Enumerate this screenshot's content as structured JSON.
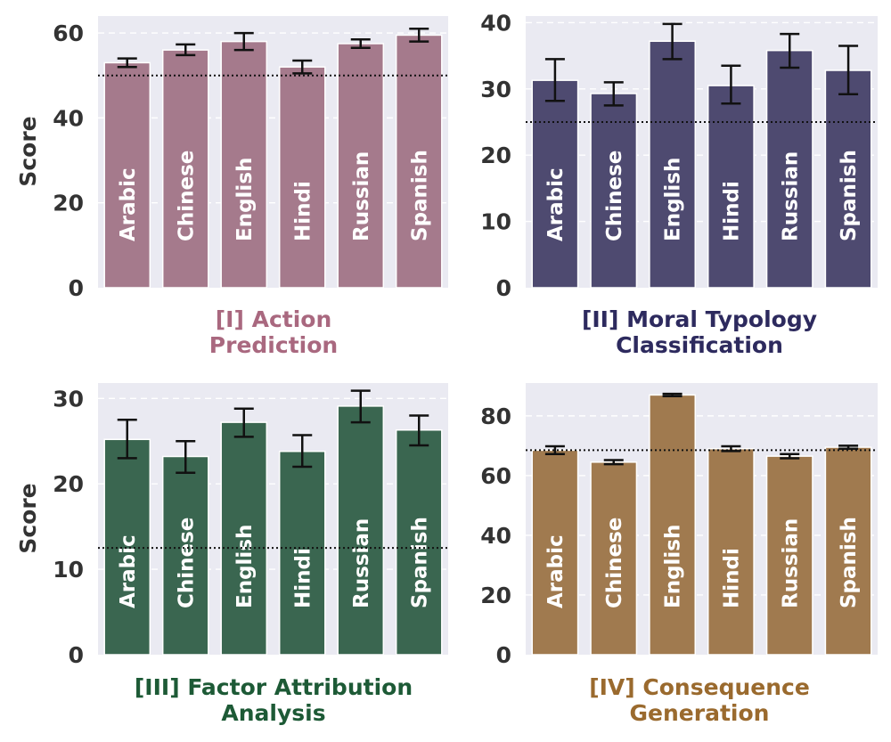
{
  "figure": {
    "ylabel": "Score"
  },
  "chart_data": [
    {
      "type": "bar",
      "title": [
        "[I] Action",
        "Prediction"
      ],
      "title_color": "#A9687F",
      "bar_color": "#A57A8C",
      "ylabel": "Score",
      "ylim": [
        0,
        64
      ],
      "yticks": [
        0,
        20,
        40,
        60
      ],
      "baseline": 50,
      "categories": [
        "Arabic",
        "Chinese",
        "English",
        "Hindi",
        "Russian",
        "Spanish"
      ],
      "values": [
        53,
        56,
        58,
        52,
        57.5,
        59.5
      ],
      "error_low": [
        52,
        54.8,
        56,
        50.5,
        56.5,
        58
      ],
      "error_high": [
        54,
        57.3,
        60,
        53.5,
        58.5,
        61
      ]
    },
    {
      "type": "bar",
      "title": [
        "[II] Moral Typology",
        "Classification"
      ],
      "title_color": "#2D2A5E",
      "bar_color": "#4E4A70",
      "ylabel": "",
      "ylim": [
        0,
        41
      ],
      "yticks": [
        0,
        10,
        20,
        30,
        40
      ],
      "baseline": 25,
      "categories": [
        "Arabic",
        "Chinese",
        "English",
        "Hindi",
        "Russian",
        "Spanish"
      ],
      "values": [
        31.3,
        29.3,
        37.2,
        30.5,
        35.8,
        32.8
      ],
      "error_low": [
        28.2,
        27.5,
        34.5,
        27.8,
        33.2,
        29.2
      ],
      "error_high": [
        34.5,
        31,
        39.8,
        33.5,
        38.3,
        36.5
      ]
    },
    {
      "type": "bar",
      "title": [
        "[III] Factor Attribution",
        "Analysis"
      ],
      "title_color": "#1D5A36",
      "bar_color": "#3A6650",
      "ylabel": "Score",
      "ylim": [
        0,
        31.8
      ],
      "yticks": [
        0,
        10,
        20,
        30
      ],
      "baseline": 12.5,
      "categories": [
        "Arabic",
        "Chinese",
        "English",
        "Hindi",
        "Russian",
        "Spanish"
      ],
      "values": [
        25.2,
        23.2,
        27.2,
        23.8,
        29.1,
        26.3
      ],
      "error_low": [
        23,
        21.3,
        25.5,
        22,
        27.2,
        24.5
      ],
      "error_high": [
        27.5,
        25,
        28.8,
        25.7,
        30.9,
        28
      ]
    },
    {
      "type": "bar",
      "title": [
        "[IV] Consequence",
        "Generation"
      ],
      "title_color": "#9A6A2E",
      "bar_color": "#A07A4F",
      "ylabel": "",
      "ylim": [
        0,
        91
      ],
      "yticks": [
        0,
        20,
        40,
        60,
        80
      ],
      "baseline": 68.5,
      "categories": [
        "Arabic",
        "Chinese",
        "English",
        "Hindi",
        "Russian",
        "Spanish"
      ],
      "values": [
        68.5,
        64.5,
        87,
        69,
        66.5,
        69.5
      ],
      "error_low": [
        67.2,
        63.8,
        86.6,
        68.2,
        65.8,
        69
      ],
      "error_high": [
        69.8,
        65.2,
        87.4,
        69.8,
        67.2,
        70
      ]
    }
  ]
}
